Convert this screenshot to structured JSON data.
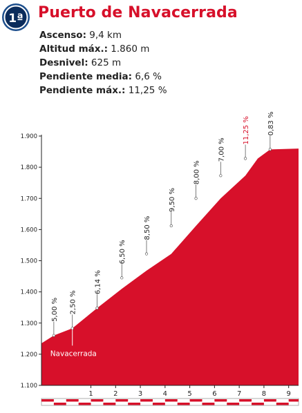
{
  "header": {
    "badge": "1ª",
    "title": "Puerto de Navacerrada"
  },
  "stats": [
    {
      "label": "Ascenso:",
      "value": "9,4 km"
    },
    {
      "label": "Altitud máx.:",
      "value": "1.860 m"
    },
    {
      "label": "Desnivel:",
      "value": "625 m"
    },
    {
      "label": "Pendiente media:",
      "value": "6,6 %"
    },
    {
      "label": "Pendiente máx.:",
      "value": "11,25 %"
    }
  ],
  "colors": {
    "profile": "#d7102a",
    "max_gradient": "#d7102a",
    "badge_ring": "#1c4e8c",
    "badge_fill": "#0b2c5c",
    "axis": "#222222"
  },
  "chart_data": {
    "type": "area",
    "xlim": [
      -1,
      9.4
    ],
    "ylim": [
      1100,
      1900
    ],
    "xticks": [
      "1",
      "2",
      "3",
      "4",
      "5",
      "6",
      "7",
      "8",
      "9"
    ],
    "yticks": [
      "1.100",
      "1.200",
      "1.300",
      "1.400",
      "1.500",
      "1.600",
      "1.700",
      "1.800",
      "1.900"
    ],
    "x": [
      -1,
      -0.5,
      0.25,
      1.25,
      2.25,
      3.25,
      4.25,
      5.25,
      6.25,
      7.25,
      7.75,
      8.25,
      9.4
    ],
    "y": [
      1235,
      1260,
      1283,
      1348,
      1410,
      1468,
      1522,
      1612,
      1700,
      1773,
      1828,
      1857,
      1860
    ],
    "gradients": [
      {
        "x": -0.5,
        "y": 1260,
        "label": "5,00 %",
        "max": false
      },
      {
        "x": 0.25,
        "y": 1283,
        "label": "2,50 %",
        "max": false
      },
      {
        "x": 1.25,
        "y": 1348,
        "label": "6,14 %",
        "max": false
      },
      {
        "x": 2.25,
        "y": 1445,
        "label": "6,50 %",
        "max": false
      },
      {
        "x": 3.25,
        "y": 1522,
        "label": "8,50 %",
        "max": false
      },
      {
        "x": 4.25,
        "y": 1612,
        "label": "9,50 %",
        "max": false
      },
      {
        "x": 5.25,
        "y": 1700,
        "label": "8,00 %",
        "max": false
      },
      {
        "x": 6.25,
        "y": 1773,
        "label": "7,00 %",
        "max": false
      },
      {
        "x": 7.25,
        "y": 1828,
        "label": "11,25 %",
        "max": true
      },
      {
        "x": 8.25,
        "y": 1857,
        "label": "0,83 %",
        "max": false
      }
    ],
    "annotations": [
      {
        "x": 0.25,
        "y": 1283,
        "text": "Navacerrada"
      }
    ]
  }
}
